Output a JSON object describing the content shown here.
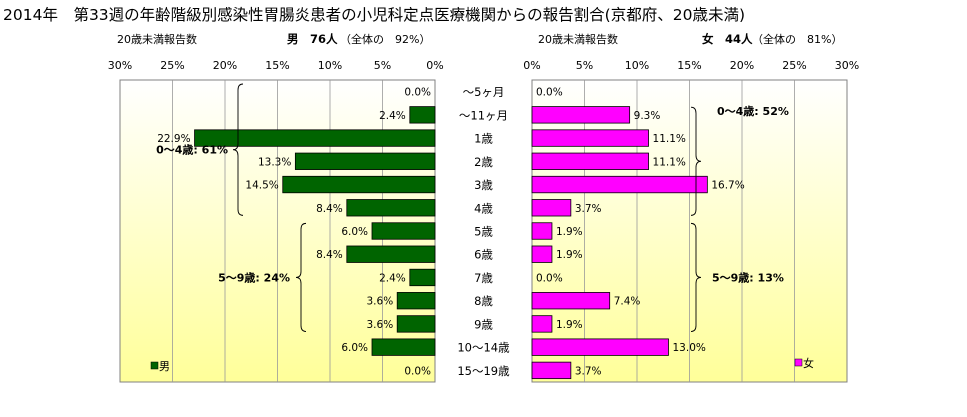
{
  "title": "2014年　第33週の年齢階級別感染性胃腸炎患者の小児科定点医療機関からの報告割合(京都府、20歳未満)",
  "colors": {
    "male": "#006400",
    "female": "#FF00FF",
    "plot_bg_top": "#FFFFFF",
    "plot_bg_bottom": "#FFFF99"
  },
  "chart_data": [
    {
      "type": "bar",
      "orientation": "horizontal",
      "direction": "right-to-left",
      "header_left": "20歳未満報告数",
      "header_series": "男　76人",
      "header_share": "（全体の　92%）",
      "legend": "男",
      "legend_position": "bottom-left",
      "xlim": [
        0,
        30
      ],
      "xticks": [
        "30%",
        "25%",
        "20%",
        "15%",
        "10%",
        "5%",
        "0%"
      ],
      "grid": true,
      "categories": [
        "～5ヶ月",
        "～11ヶ月",
        "1歳",
        "2歳",
        "3歳",
        "4歳",
        "5歳",
        "6歳",
        "7歳",
        "8歳",
        "9歳",
        "10～14歳",
        "15～19歳"
      ],
      "series": [
        {
          "name": "男",
          "values": [
            0.0,
            2.4,
            22.9,
            13.3,
            14.5,
            8.4,
            6.0,
            8.4,
            2.4,
            3.6,
            3.6,
            6.0,
            0.0
          ],
          "labels": [
            "0.0%",
            "2.4%",
            "22.9%",
            "13.3%",
            "14.5%",
            "8.4%",
            "6.0%",
            "8.4%",
            "2.4%",
            "3.6%",
            "3.6%",
            "6.0%",
            "0.0%"
          ]
        }
      ],
      "annotations": [
        "0～4歳: 61%",
        "5～9歳: 24%"
      ]
    },
    {
      "type": "bar",
      "orientation": "horizontal",
      "direction": "left-to-right",
      "header_left": "20歳未満報告数",
      "header_series": "女　44人",
      "header_share": "（全体の　81%）",
      "legend": "女",
      "legend_position": "bottom-right",
      "xlim": [
        0,
        30
      ],
      "xticks": [
        "0%",
        "5%",
        "10%",
        "15%",
        "20%",
        "25%",
        "30%"
      ],
      "grid": true,
      "categories": [
        "～5ヶ月",
        "～11ヶ月",
        "1歳",
        "2歳",
        "3歳",
        "4歳",
        "5歳",
        "6歳",
        "7歳",
        "8歳",
        "9歳",
        "10～14歳",
        "15～19歳"
      ],
      "series": [
        {
          "name": "女",
          "values": [
            0.0,
            9.3,
            11.1,
            11.1,
            16.7,
            3.7,
            1.9,
            1.9,
            0.0,
            7.4,
            1.9,
            13.0,
            3.7
          ],
          "labels": [
            "0.0%",
            "9.3%",
            "11.1%",
            "11.1%",
            "16.7%",
            "3.7%",
            "1.9%",
            "1.9%",
            "0.0%",
            "7.4%",
            "1.9%",
            "13.0%",
            "3.7%"
          ]
        }
      ],
      "annotations": [
        "0～4歳: 52%",
        "5～9歳: 13%"
      ]
    }
  ]
}
